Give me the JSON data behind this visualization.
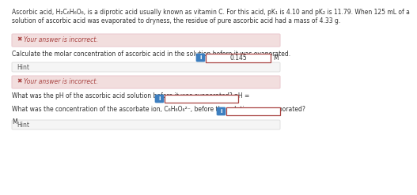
{
  "bg_color": "#ffffff",
  "header_line1": "Ascorbic acid, H₂C₆H₆O₆, is a diprotic acid usually known as vitamin C. For this acid, pK₁ is 4.10 and pK₂ is 11.79. When 125 mL of a",
  "header_line2": "solution of ascorbic acid was evaporated to dryness, the residue of pure ascorbic acid had a mass of 4.33 g.",
  "error_text": "Your answer is incorrect.",
  "error_x": "✖",
  "error_fg": "#a94442",
  "error_bg": "#f2dede",
  "error_border": "#ebccd1",
  "q1_text": "Calculate the molar concentration of ascorbic acid in the solution before it was evaporated.",
  "q1_answer": "0.145",
  "q1_unit": "M",
  "hint_text": "Hint",
  "hint_bg": "#f5f5f5",
  "hint_border": "#dddddd",
  "q2_text": "What was the pH of the ascorbic acid solution before it was evaporated? pH =",
  "q3_text": "What was the concentration of the ascorbate ion, C₆H₆O₆²⁻, before the solution was evaporated?",
  "q3_unit": "M",
  "info_color": "#3d7fc0",
  "input_border": "#a94442",
  "input_bg": "#ffffff",
  "text_color": "#333333",
  "text_fs": 5.5,
  "small_fs": 5.0
}
